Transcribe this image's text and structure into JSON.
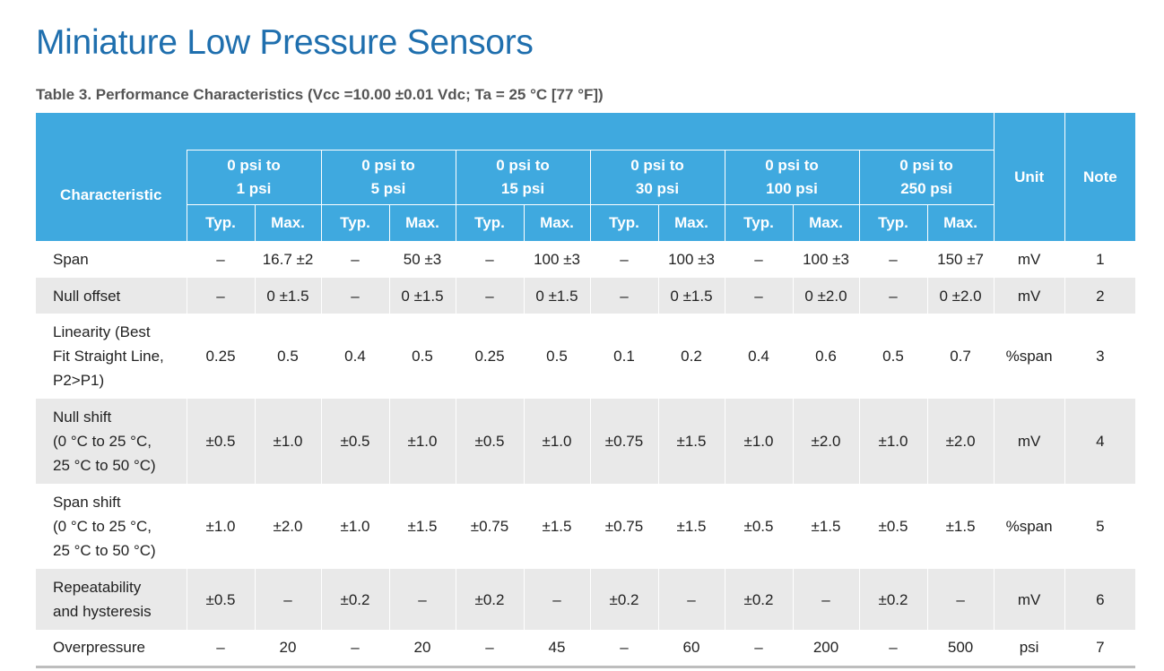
{
  "title": "Miniature Low Pressure Sensors",
  "subtitle": "Table 3. Performance Characteristics (Vcc =10.00 ±0.01 Vdc; Ta = 25 °C [77 °F])",
  "header": {
    "characteristic": "Characteristic",
    "unit": "Unit",
    "note": "Note",
    "typ": "Typ.",
    "max": "Max.",
    "groups": [
      {
        "line1": "0 psi to",
        "line2": "1 psi"
      },
      {
        "line1": "0 psi to",
        "line2": "5 psi"
      },
      {
        "line1": "0 psi to",
        "line2": "15 psi"
      },
      {
        "line1": "0 psi to",
        "line2": "30 psi"
      },
      {
        "line1": "0 psi to",
        "line2": "100 psi"
      },
      {
        "line1": "0 psi to",
        "line2": "250 psi"
      }
    ]
  },
  "rows": [
    {
      "lines": [
        "Span"
      ],
      "values": [
        "–",
        "16.7 ±2",
        "–",
        "50 ±3",
        "–",
        "100 ±3",
        "–",
        "100 ±3",
        "–",
        "100 ±3",
        "–",
        "150 ±7"
      ],
      "unit": "mV",
      "note": "1"
    },
    {
      "lines": [
        "Null offset"
      ],
      "values": [
        "–",
        "0 ±1.5",
        "–",
        "0 ±1.5",
        "–",
        "0 ±1.5",
        "–",
        "0 ±1.5",
        "–",
        "0 ±2.0",
        "–",
        "0 ±2.0"
      ],
      "unit": "mV",
      "note": "2"
    },
    {
      "lines": [
        "Linearity (Best",
        "Fit Straight Line,",
        "P2>P1)"
      ],
      "values": [
        "0.25",
        "0.5",
        "0.4",
        "0.5",
        "0.25",
        "0.5",
        "0.1",
        "0.2",
        "0.4",
        "0.6",
        "0.5",
        "0.7"
      ],
      "unit": "%span",
      "note": "3"
    },
    {
      "lines": [
        "Null shift",
        "(0 °C to 25 °C,",
        "25 °C to 50 °C)"
      ],
      "values": [
        "±0.5",
        "±1.0",
        "±0.5",
        "±1.0",
        "±0.5",
        "±1.0",
        "±0.75",
        "±1.5",
        "±1.0",
        "±2.0",
        "±1.0",
        "±2.0"
      ],
      "unit": "mV",
      "note": "4"
    },
    {
      "lines": [
        "Span shift",
        "(0 °C to 25 °C,",
        "25 °C to 50 °C)"
      ],
      "values": [
        "±1.0",
        "±2.0",
        "±1.0",
        "±1.5",
        "±0.75",
        "±1.5",
        "±0.75",
        "±1.5",
        "±0.5",
        "±1.5",
        "±0.5",
        "±1.5"
      ],
      "unit": "%span",
      "note": "5"
    },
    {
      "lines": [
        "Repeatability",
        "and hysteresis"
      ],
      "values": [
        "±0.5",
        "–",
        "±0.2",
        "–",
        "±0.2",
        "–",
        "±0.2",
        "–",
        "±0.2",
        "–",
        "±0.2",
        "–"
      ],
      "unit": "mV",
      "note": "6"
    },
    {
      "lines": [
        "Overpressure"
      ],
      "values": [
        "–",
        "20",
        "–",
        "20",
        "–",
        "45",
        "–",
        "60",
        "–",
        "200",
        "–",
        "500"
      ],
      "unit": "psi",
      "note": "7"
    }
  ],
  "colors": {
    "title": "#1f6fae",
    "header_bg": "#3fa9df",
    "row_alt": "#e9e9e9"
  }
}
